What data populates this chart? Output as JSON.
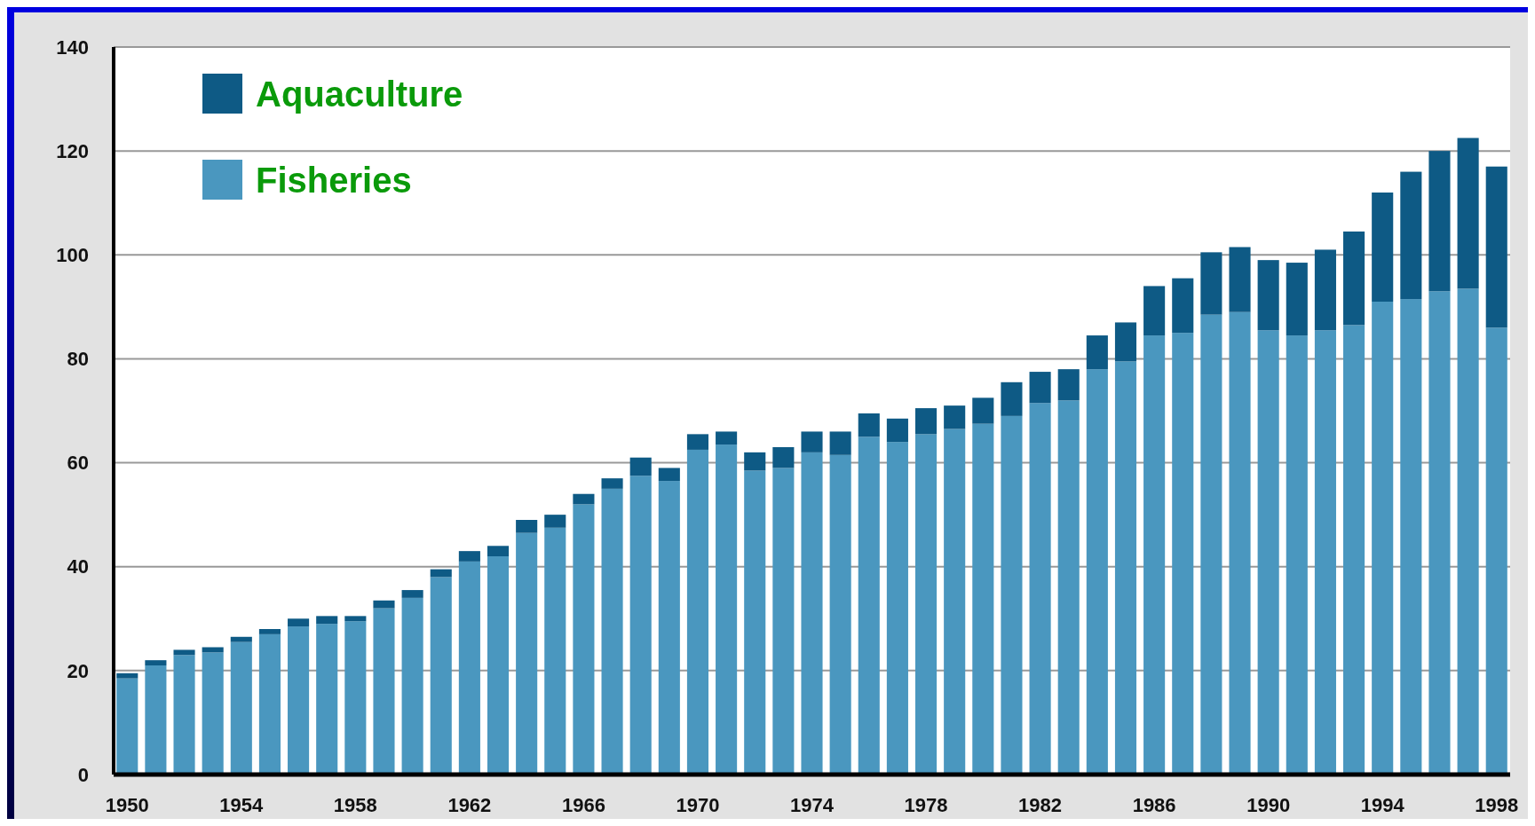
{
  "chart_data": {
    "type": "bar",
    "stacked": true,
    "categories": [
      "1950",
      null,
      null,
      null,
      "1954",
      null,
      null,
      null,
      "1958",
      null,
      null,
      null,
      "1962",
      null,
      null,
      null,
      "1966",
      null,
      null,
      null,
      "1970",
      null,
      null,
      null,
      "1974",
      null,
      null,
      null,
      "1978",
      null,
      null,
      null,
      "1982",
      null,
      null,
      null,
      "1986",
      null,
      null,
      null,
      "1990",
      null,
      null,
      null,
      "1994",
      null,
      null,
      null,
      "1998"
    ],
    "series": [
      {
        "name": "Fisheries",
        "color": "#4a97bf",
        "values": [
          18.5,
          21,
          23,
          23.5,
          25.5,
          27,
          28.5,
          29,
          29.5,
          32,
          34,
          38,
          41,
          42,
          46.5,
          47.5,
          52,
          55,
          57.5,
          56.5,
          62.5,
          63.5,
          58.5,
          59,
          62,
          61.5,
          65,
          64,
          65.5,
          66.5,
          67.5,
          69,
          71.5,
          72,
          78,
          79.5,
          84.5,
          85,
          88.5,
          89,
          85.5,
          84.5,
          85.5,
          86.5,
          91,
          91.5,
          93,
          93.5,
          86
        ]
      },
      {
        "name": "Aquaculture",
        "color": "#0e5a85",
        "values": [
          1,
          1,
          1,
          1,
          1,
          1,
          1.5,
          1.5,
          1,
          1.5,
          1.5,
          1.5,
          2,
          2,
          2.5,
          2.5,
          2,
          2,
          3.5,
          2.5,
          3,
          2.5,
          3.5,
          4,
          4,
          4.5,
          4.5,
          4.5,
          5,
          4.5,
          5,
          6.5,
          6,
          6,
          6.5,
          7.5,
          9.5,
          10.5,
          12,
          12.5,
          13.5,
          14,
          15.5,
          18,
          21,
          24.5,
          27,
          29,
          31
        ]
      }
    ],
    "ylim": [
      0,
      140
    ],
    "yticks": [
      0,
      20,
      40,
      60,
      80,
      100,
      120,
      140
    ],
    "grid": "y",
    "legend": "top left"
  }
}
